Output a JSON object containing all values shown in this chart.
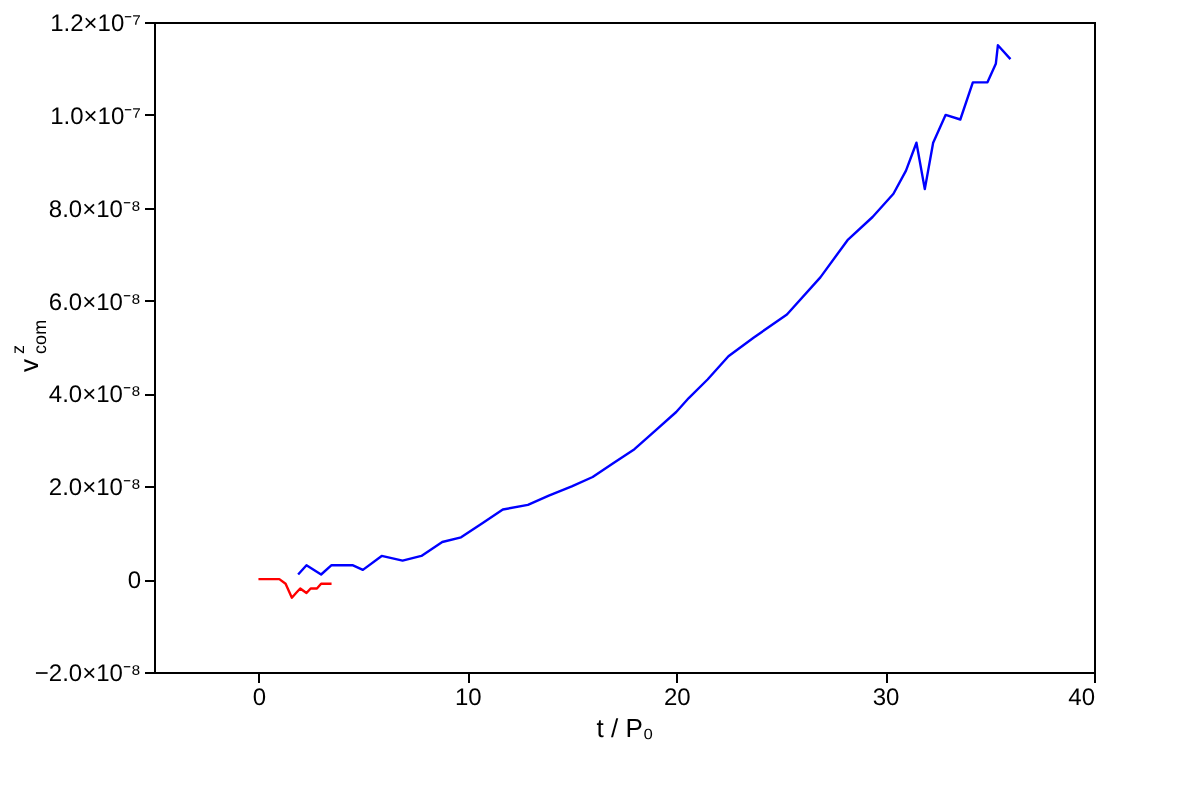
{
  "chart_data": {
    "type": "line",
    "xlabel": "t / P₀",
    "ylabel": "v$^{z}$$_{com}$",
    "xlim": [
      -5,
      40
    ],
    "xticks": [
      0,
      10,
      20,
      30,
      40
    ],
    "ylim": [
      -2e-08,
      1.2e-07
    ],
    "yticks": [
      {
        "value": -2e-08,
        "label": "−2.0×10⁻⁸"
      },
      {
        "value": 0,
        "label": "0"
      },
      {
        "value": 2e-08,
        "label": "2.0×10⁻⁸"
      },
      {
        "value": 4e-08,
        "label": "4.0×10⁻⁸"
      },
      {
        "value": 6e-08,
        "label": "6.0×10⁻⁸"
      },
      {
        "value": 8e-08,
        "label": "8.0×10⁻⁸"
      },
      {
        "value": 1e-07,
        "label": "1.0×10⁻⁷"
      },
      {
        "value": 1.2e-07,
        "label": "1.2×10⁻⁷"
      }
    ],
    "grid": false,
    "marker": "none",
    "line_style": "solid",
    "series": [
      {
        "color": "#0000ff",
        "x": [
          1.9,
          2.3,
          3.0,
          3.5,
          4.0,
          4.5,
          5.0,
          5.9,
          6.9,
          7.8,
          8.8,
          9.7,
          10.7,
          11.7,
          12.9,
          13.9,
          15.0,
          16.0,
          17.0,
          18.0,
          19.0,
          20.0,
          20.6,
          21.5,
          22.5,
          23.7,
          25.3,
          26.9,
          28.2,
          29.4,
          30.4,
          31.0,
          31.5,
          31.9,
          32.3,
          32.9,
          33.6,
          34.2,
          34.9,
          35.3,
          35.4,
          36.0
        ],
        "values": [
          1e-09,
          3e-09,
          1e-09,
          3e-09,
          3e-09,
          3e-09,
          2e-09,
          5e-09,
          4e-09,
          5e-09,
          8e-09,
          9e-09,
          1.2e-08,
          1.5e-08,
          1.6e-08,
          1.8e-08,
          2e-08,
          2.2e-08,
          2.5e-08,
          2.8e-08,
          3.2e-08,
          3.6e-08,
          3.9e-08,
          4.3e-08,
          4.8e-08,
          5.2e-08,
          5.7e-08,
          6.5e-08,
          7.3e-08,
          7.8e-08,
          8.3e-08,
          8.8e-08,
          9.4e-08,
          8.4e-08,
          9.4e-08,
          1e-07,
          9.9e-08,
          1.07e-07,
          1.07e-07,
          1.11e-07,
          1.15e-07,
          1.12e-07
        ]
      },
      {
        "color": "#ff0000",
        "x": [
          0,
          1.0,
          1.3,
          1.6,
          1.8,
          2.0,
          2.3,
          2.5,
          2.8,
          3.0,
          3.5
        ],
        "values": [
          0,
          0,
          -1e-09,
          -4e-09,
          -3e-09,
          -2e-09,
          -3e-09,
          -2e-09,
          -2e-09,
          -1e-09,
          -1e-09
        ]
      }
    ]
  }
}
